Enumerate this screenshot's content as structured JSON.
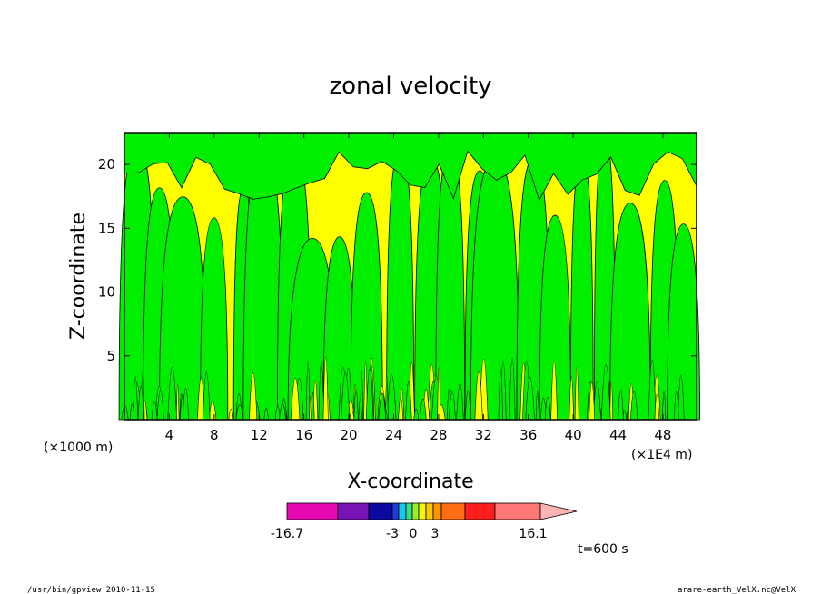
{
  "chart_data": {
    "type": "heatmap",
    "title": "zonal velocity",
    "xlabel": "X-coordinate",
    "ylabel": "Z-coordinate",
    "x_units_left": "(×1000 m)",
    "x_units_right": "(×1E4 m)",
    "x_ticks": [
      4,
      8,
      12,
      16,
      20,
      24,
      28,
      32,
      36,
      40,
      44,
      48
    ],
    "y_ticks": [
      5,
      10,
      15,
      20
    ],
    "xlim": [
      0,
      51
    ],
    "ylim": [
      0,
      22.5
    ],
    "colorbar": {
      "labels": [
        "-16.7",
        "-3",
        "0",
        "3",
        "16.1"
      ],
      "colors": [
        "#e60ab4",
        "#7814b4",
        "#0a0aa0",
        "#1e3cdc",
        "#14c8f0",
        "#3cdc8c",
        "#96f028",
        "#f5f50a",
        "#ffc800",
        "#ff9600",
        "#ff6e14",
        "#ff1e1e",
        "#ff7878",
        "#ffb4b4"
      ]
    },
    "fill_colors": {
      "background": "#ffff00",
      "contour_region": "#00ee00",
      "contour_line": "#000000"
    },
    "time_label": "t=600 s"
  },
  "footer": {
    "left": "/usr/bin/gpview  2010-11-15",
    "right": "arare-earth_VelX.nc@VelX"
  }
}
